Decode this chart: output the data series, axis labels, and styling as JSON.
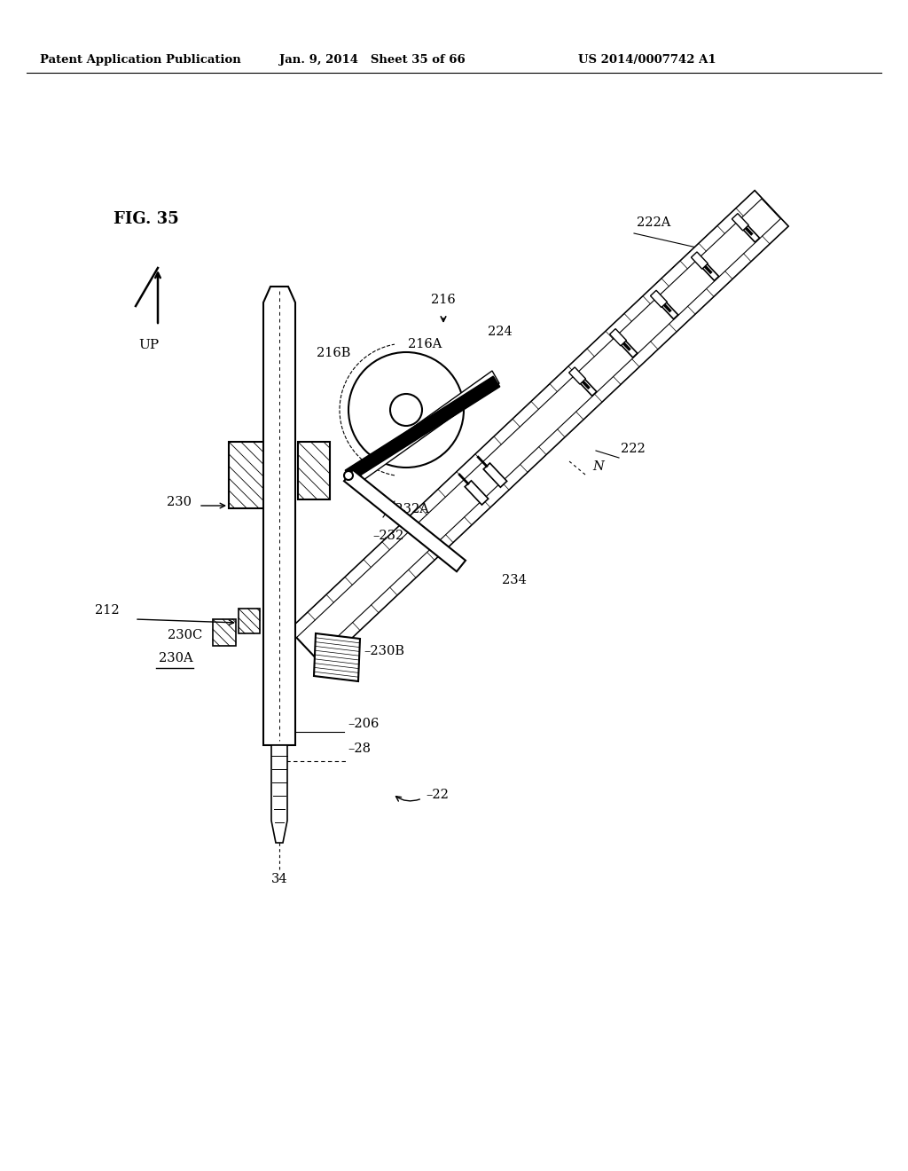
{
  "background_color": "#ffffff",
  "header_left": "Patent Application Publication",
  "header_mid": "Jan. 9, 2014   Sheet 35 of 66",
  "header_right": "US 2014/0007742 A1",
  "fig_label": "FIG. 35",
  "up_label": "UP"
}
